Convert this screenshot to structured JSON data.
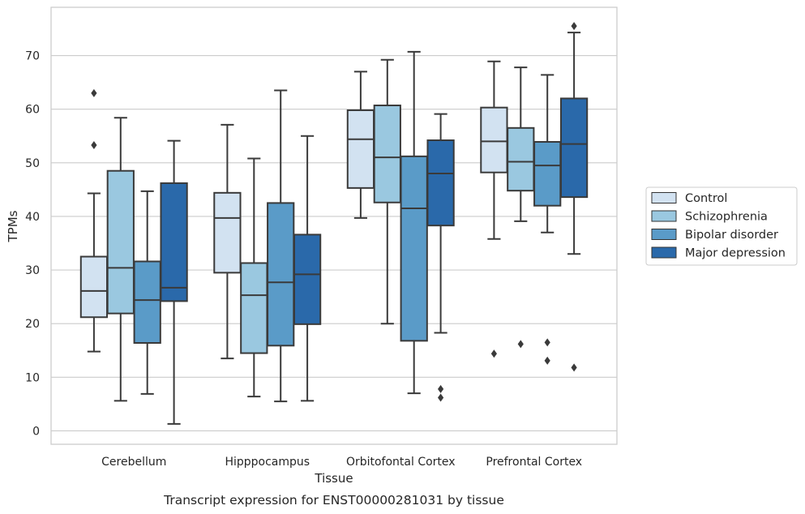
{
  "caption": "Transcript expression for ENST00000281031 by tissue",
  "chart_data": {
    "type": "box",
    "xlabel": "Tissue",
    "ylabel": "TPMs",
    "ylim": [
      -2.5,
      79
    ],
    "yticks": [
      0,
      10,
      20,
      30,
      40,
      50,
      60,
      70
    ],
    "grid": true,
    "legend_position": "right",
    "categories": [
      "Cerebellum",
      "Hipppocampus",
      "Orbitofontal Cortex",
      "Prefrontal Cortex"
    ],
    "series": [
      {
        "name": "Control",
        "color": "#d2e2f1",
        "boxes": [
          {
            "whisker_low": 14.8,
            "q1": 21.2,
            "median": 26.1,
            "q3": 32.5,
            "whisker_high": 44.3,
            "outliers": [
              63.0,
              53.3
            ]
          },
          {
            "whisker_low": 13.5,
            "q1": 29.5,
            "median": 39.7,
            "q3": 44.4,
            "whisker_high": 57.1,
            "outliers": []
          },
          {
            "whisker_low": 39.7,
            "q1": 45.3,
            "median": 54.4,
            "q3": 59.8,
            "whisker_high": 67.0,
            "outliers": []
          },
          {
            "whisker_low": 35.8,
            "q1": 48.2,
            "median": 54.0,
            "q3": 60.3,
            "whisker_high": 68.9,
            "outliers": [
              14.4
            ]
          }
        ]
      },
      {
        "name": "Schizophrenia",
        "color": "#9ac8e0",
        "boxes": [
          {
            "whisker_low": 5.6,
            "q1": 21.9,
            "median": 30.4,
            "q3": 48.5,
            "whisker_high": 58.4,
            "outliers": []
          },
          {
            "whisker_low": 6.4,
            "q1": 14.5,
            "median": 25.3,
            "q3": 31.3,
            "whisker_high": 50.8,
            "outliers": []
          },
          {
            "whisker_low": 20.0,
            "q1": 42.6,
            "median": 51.0,
            "q3": 60.7,
            "whisker_high": 69.2,
            "outliers": []
          },
          {
            "whisker_low": 39.1,
            "q1": 44.8,
            "median": 50.2,
            "q3": 56.5,
            "whisker_high": 67.8,
            "outliers": [
              16.2
            ]
          }
        ]
      },
      {
        "name": "Bipolar disorder",
        "color": "#5a9bc8",
        "boxes": [
          {
            "whisker_low": 6.9,
            "q1": 16.4,
            "median": 24.4,
            "q3": 31.6,
            "whisker_high": 44.7,
            "outliers": []
          },
          {
            "whisker_low": 5.5,
            "q1": 15.9,
            "median": 27.7,
            "q3": 42.5,
            "whisker_high": 63.5,
            "outliers": []
          },
          {
            "whisker_low": 7.0,
            "q1": 16.8,
            "median": 41.5,
            "q3": 51.2,
            "whisker_high": 70.7,
            "outliers": []
          },
          {
            "whisker_low": 37.0,
            "q1": 42.0,
            "median": 49.5,
            "q3": 53.9,
            "whisker_high": 66.4,
            "outliers": [
              16.5,
              13.1
            ]
          }
        ]
      },
      {
        "name": "Major depression",
        "color": "#2a69aa",
        "boxes": [
          {
            "whisker_low": 1.3,
            "q1": 24.2,
            "median": 26.7,
            "q3": 46.2,
            "whisker_high": 54.1,
            "outliers": []
          },
          {
            "whisker_low": 5.6,
            "q1": 19.9,
            "median": 29.2,
            "q3": 36.6,
            "whisker_high": 55.0,
            "outliers": []
          },
          {
            "whisker_low": 18.3,
            "q1": 38.3,
            "median": 48.0,
            "q3": 54.2,
            "whisker_high": 59.1,
            "outliers": [
              7.8,
              6.2
            ]
          },
          {
            "whisker_low": 33.0,
            "q1": 43.6,
            "median": 53.5,
            "q3": 62.0,
            "whisker_high": 74.3,
            "outliers": [
              75.5,
              11.8
            ]
          }
        ]
      }
    ]
  }
}
